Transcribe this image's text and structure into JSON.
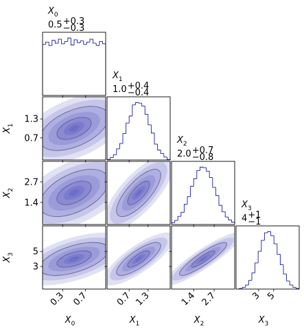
{
  "chart_data": {
    "type": "corner",
    "color": "#1a1aa8",
    "variables": [
      {
        "symbol": "X",
        "subscript": "0",
        "median": {
          "value": 0.5,
          "label": "0.5"
        },
        "plus": "+0.3",
        "minus": "−0.3",
        "xlim": [
          -0.05,
          1.05
        ],
        "ticks": [
          0.3,
          0.7
        ],
        "bins": [
          -0.05,
          0.005,
          0.06,
          0.115,
          0.17,
          0.225,
          0.28,
          0.335,
          0.39,
          0.445,
          0.5,
          0.555,
          0.61,
          0.665,
          0.72,
          0.775,
          0.83,
          0.885,
          0.94,
          0.995,
          1.05
        ],
        "hist": [
          88,
          92,
          86,
          95,
          90,
          97,
          89,
          93,
          99,
          87,
          96,
          91,
          94,
          88,
          92,
          97,
          90,
          86,
          93,
          89
        ]
      },
      {
        "symbol": "X",
        "subscript": "1",
        "median": {
          "value": 1.0,
          "label": "1.0"
        },
        "plus": "+0.4",
        "minus": "−0.4",
        "xlim": [
          0,
          2
        ],
        "ticks": [
          0.7,
          1.3
        ],
        "bins": [
          0,
          0.1,
          0.2,
          0.3,
          0.4,
          0.5,
          0.6,
          0.7,
          0.8,
          0.9,
          1.0,
          1.1,
          1.2,
          1.3,
          1.4,
          1.5,
          1.6,
          1.7,
          1.8,
          1.9,
          2.0
        ],
        "hist": [
          1,
          4,
          9,
          19,
          28,
          45,
          63,
          75,
          94,
          98,
          97,
          92,
          78,
          60,
          46,
          27,
          17,
          11,
          5,
          1
        ]
      },
      {
        "symbol": "X",
        "subscript": "2",
        "median": {
          "value": 2.0,
          "label": "2.0"
        },
        "plus": "+0.7",
        "minus": "−0.8",
        "xlim": [
          0,
          4
        ],
        "ticks": [
          1.4,
          2.7
        ],
        "bins": [
          0,
          0.2,
          0.4,
          0.6,
          0.8,
          1.0,
          1.2,
          1.4,
          1.6,
          1.8,
          2.0,
          2.2,
          2.4,
          2.6,
          2.8,
          3.0,
          3.2,
          3.4,
          3.6,
          3.8,
          4.0
        ],
        "hist": [
          3,
          7,
          14,
          21,
          35,
          48,
          66,
          79,
          93,
          99,
          98,
          92,
          81,
          64,
          50,
          33,
          22,
          13,
          8,
          4
        ]
      },
      {
        "symbol": "X",
        "subscript": "3",
        "median": {
          "value": 4,
          "label": "4"
        },
        "plus": "+1",
        "minus": "−1",
        "xlim": [
          0,
          8.4
        ],
        "ticks": [
          3,
          5
        ],
        "bins": [
          0,
          0.42,
          0.84,
          1.26,
          1.68,
          2.1,
          2.52,
          2.94,
          3.36,
          3.78,
          4.2,
          4.62,
          5.04,
          5.46,
          5.88,
          6.3,
          6.72,
          7.14,
          7.56,
          7.98,
          8.4
        ],
        "hist": [
          0,
          1,
          3,
          7,
          15,
          28,
          45,
          65,
          84,
          97,
          99,
          92,
          78,
          60,
          42,
          26,
          14,
          7,
          3,
          1
        ]
      }
    ],
    "pairs": [
      {
        "x": 0,
        "y": 1,
        "center": [
          0.5,
          1.0
        ],
        "sd": [
          0.3,
          0.35
        ],
        "corr": 0.5
      },
      {
        "x": 0,
        "y": 2,
        "center": [
          0.5,
          2.0
        ],
        "sd": [
          0.3,
          0.75
        ],
        "corr": 0.5
      },
      {
        "x": 1,
        "y": 2,
        "center": [
          1.0,
          2.0
        ],
        "sd": [
          0.35,
          0.75
        ],
        "corr": 0.75
      },
      {
        "x": 0,
        "y": 3,
        "center": [
          0.5,
          4.0
        ],
        "sd": [
          0.3,
          1.1
        ],
        "corr": 0.55
      },
      {
        "x": 1,
        "y": 3,
        "center": [
          1.0,
          4.0
        ],
        "sd": [
          0.35,
          1.1
        ],
        "corr": 0.8
      },
      {
        "x": 2,
        "y": 3,
        "center": [
          2.0,
          4.0
        ],
        "sd": [
          0.75,
          1.1
        ],
        "corr": 0.9
      }
    ]
  }
}
